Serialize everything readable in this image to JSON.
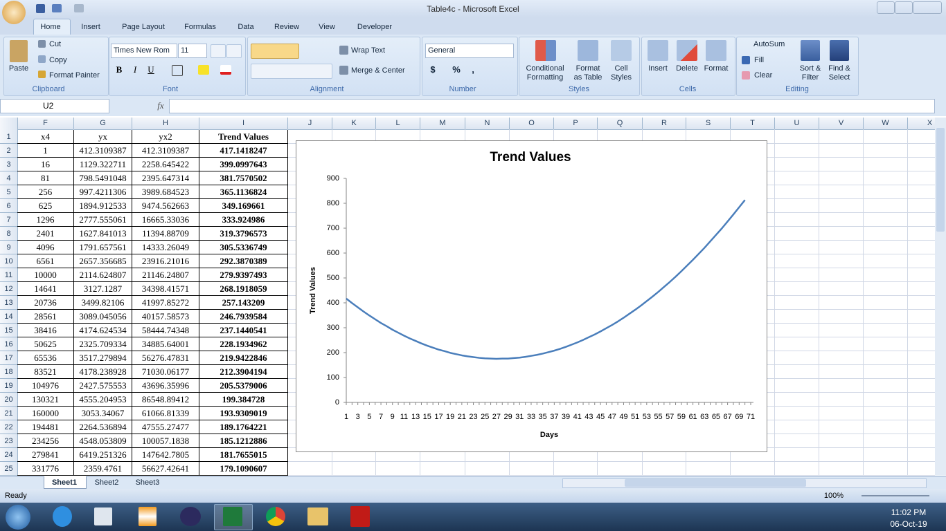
{
  "window": {
    "title": "Table4c - Microsoft Excel"
  },
  "tabs": [
    "Home",
    "Insert",
    "Page Layout",
    "Formulas",
    "Data",
    "Review",
    "View",
    "Developer"
  ],
  "ribbon": {
    "clipboard": {
      "label": "Clipboard",
      "paste": "Paste",
      "cut": "Cut",
      "copy": "Copy",
      "format_painter": "Format Painter"
    },
    "font": {
      "label": "Font",
      "name": "Times New Rom",
      "size": "11",
      "bold": "B",
      "italic": "I",
      "underline": "U"
    },
    "alignment": {
      "label": "Alignment",
      "wrap_text": "Wrap Text",
      "merge_center": "Merge & Center"
    },
    "number": {
      "label": "Number",
      "format": "General",
      "currency": "$",
      "percent": "%",
      "comma": ","
    },
    "styles": {
      "label": "Styles",
      "conditional": [
        "Conditional",
        "Formatting"
      ],
      "format_table": [
        "Format",
        "as Table"
      ],
      "cell_styles": [
        "Cell",
        "Styles"
      ]
    },
    "cells": {
      "label": "Cells",
      "insert": "Insert",
      "delete": "Delete",
      "format": "Format"
    },
    "editing": {
      "label": "Editing",
      "autosum": "AutoSum",
      "fill": "Fill",
      "clear": "Clear",
      "sort": [
        "Sort &",
        "Filter"
      ],
      "find": [
        "Find &",
        "Select"
      ]
    }
  },
  "formula_bar": {
    "name_box": "U2",
    "fx": "fx"
  },
  "columns": [
    "F",
    "G",
    "H",
    "I",
    "J",
    "K",
    "L",
    "M",
    "N",
    "O",
    "P",
    "Q",
    "R",
    "S",
    "T",
    "U",
    "V",
    "W",
    "X"
  ],
  "row_numbers": [
    1,
    2,
    3,
    4,
    5,
    6,
    7,
    8,
    9,
    10,
    11,
    12,
    13,
    14,
    15,
    16,
    17,
    18,
    19,
    20,
    21,
    22,
    23,
    24,
    25
  ],
  "table": {
    "header": [
      "x4",
      "yx",
      "yx2",
      "Trend Values"
    ],
    "rows": [
      [
        "1",
        "412.3109387",
        "412.3109387",
        "417.1418247"
      ],
      [
        "16",
        "1129.322711",
        "2258.645422",
        "399.0997643"
      ],
      [
        "81",
        "798.5491048",
        "2395.647314",
        "381.7570502"
      ],
      [
        "256",
        "997.4211306",
        "3989.684523",
        "365.1136824"
      ],
      [
        "625",
        "1894.912533",
        "9474.562663",
        "349.169661"
      ],
      [
        "1296",
        "2777.555061",
        "16665.33036",
        "333.924986"
      ],
      [
        "2401",
        "1627.841013",
        "11394.88709",
        "319.3796573"
      ],
      [
        "4096",
        "1791.657561",
        "14333.26049",
        "305.5336749"
      ],
      [
        "6561",
        "2657.356685",
        "23916.21016",
        "292.3870389"
      ],
      [
        "10000",
        "2114.624807",
        "21146.24807",
        "279.9397493"
      ],
      [
        "14641",
        "3127.1287",
        "34398.41571",
        "268.1918059"
      ],
      [
        "20736",
        "3499.82106",
        "41997.85272",
        "257.143209"
      ],
      [
        "28561",
        "3089.045056",
        "40157.58573",
        "246.7939584"
      ],
      [
        "38416",
        "4174.624534",
        "58444.74348",
        "237.1440541"
      ],
      [
        "50625",
        "2325.709334",
        "34885.64001",
        "228.1934962"
      ],
      [
        "65536",
        "3517.279894",
        "56276.47831",
        "219.9422846"
      ],
      [
        "83521",
        "4178.238928",
        "71030.06177",
        "212.3904194"
      ],
      [
        "104976",
        "2427.575553",
        "43696.35996",
        "205.5379006"
      ],
      [
        "130321",
        "4555.204953",
        "86548.89412",
        "199.384728"
      ],
      [
        "160000",
        "3053.34067",
        "61066.81339",
        "193.9309019"
      ],
      [
        "194481",
        "2264.536894",
        "47555.27477",
        "189.1764221"
      ],
      [
        "234256",
        "4548.053809",
        "100057.1838",
        "185.1212886"
      ],
      [
        "279841",
        "6419.251326",
        "147642.7805",
        "181.7655015"
      ],
      [
        "331776",
        "2359.4761",
        "56627.42641",
        "179.1090607"
      ]
    ]
  },
  "chart_data": {
    "type": "line",
    "title": "Trend Values",
    "x_label": "Days",
    "y_label": "Trend Values",
    "color": "#4a7ebb",
    "categories": [
      "1",
      null,
      "3",
      null,
      "5",
      null,
      "7",
      null,
      "9",
      null,
      "11",
      null,
      "13",
      null,
      "15",
      null,
      "17",
      null,
      "19",
      null,
      "21",
      null,
      "23",
      null,
      "25",
      null,
      "27",
      null,
      "29",
      null,
      "31",
      null,
      "33",
      null,
      "35",
      null,
      "37",
      null,
      "39",
      null,
      "41",
      null,
      "43",
      null,
      "45",
      null,
      "47",
      null,
      "49",
      null,
      "51",
      null,
      "53",
      null,
      "55",
      null,
      "57",
      null,
      "59",
      null,
      "61",
      null,
      "63",
      null,
      "65",
      null,
      "67",
      null,
      "69",
      null,
      "71"
    ],
    "values": [
      417,
      399,
      382,
      365,
      349,
      334,
      319,
      306,
      292,
      280,
      268,
      257,
      247,
      237,
      228,
      220,
      212,
      206,
      199,
      194,
      189,
      185,
      182,
      179,
      177,
      176,
      175,
      176,
      176,
      178,
      180,
      183,
      187,
      191,
      196,
      202,
      208,
      215,
      223,
      232,
      241,
      251,
      262,
      273,
      285,
      298,
      311,
      325,
      340,
      356,
      372,
      389,
      407,
      425,
      444,
      464,
      484,
      505,
      527,
      550,
      573,
      597,
      621,
      647,
      673,
      699,
      727,
      755,
      784,
      813,
      null
    ],
    "ylim": [
      0,
      900
    ],
    "yticks": [
      0,
      100,
      200,
      300,
      400,
      500,
      600,
      700,
      800,
      900
    ],
    "grid": false
  },
  "sheets": [
    "Sheet1",
    "Sheet2",
    "Sheet3"
  ],
  "status": {
    "ready": "Ready",
    "zoom": "100%"
  },
  "taskbar": {
    "time": "11:02 PM",
    "date": "06-Oct-19"
  }
}
